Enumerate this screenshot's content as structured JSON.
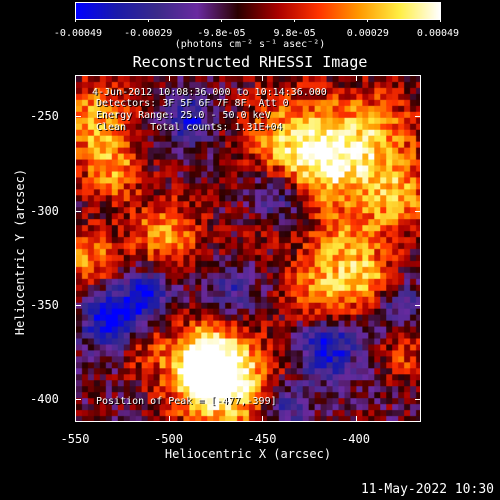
{
  "colorbar": {
    "ticks": [
      "-0.00049",
      "-0.00029",
      "-9.8e-05",
      "9.8e-05",
      "0.00029",
      "0.00049"
    ],
    "units": "(photons cm⁻² s⁻¹ asec⁻²)",
    "colors": [
      "#0000ff",
      "#1a1aaa",
      "#3a2a8a",
      "#6a2aa0",
      "#2a0000",
      "#aa0000",
      "#ff3300",
      "#ff9900",
      "#ffee44",
      "#ffffff"
    ]
  },
  "title": "Reconstructed RHESSI Image",
  "annotation": {
    "line1": "4-Jun-2012 10:08:36.000 to 10:14:36.000",
    "line2": "Detectors: 3F 5F 6F 7F 8F, Att 0",
    "line3": "Energy Range: 25.0 - 50.0 keV",
    "line4": "Clean    Total counts: 1.31E+04",
    "peak": "Position of Peak = [-477,-399]"
  },
  "timestamp": "11-May-2022 10:30",
  "chart_data": {
    "type": "heatmap",
    "title": "Reconstructed RHESSI Image",
    "xlabel": "Heliocentric X (arcsec)",
    "ylabel": "Heliocentric Y (arcsec)",
    "xlim": [
      -550,
      -365
    ],
    "ylim": [
      -412,
      -228
    ],
    "xticks": [
      "-550",
      "-500",
      "-450",
      "-400"
    ],
    "yticks": [
      "-250",
      "-300",
      "-350",
      "-400"
    ],
    "colorbar_range": [
      -0.00049,
      0.00049
    ],
    "peak": [
      -477,
      -399
    ],
    "colormap": "blue-purple-black-red-yellow-white"
  }
}
